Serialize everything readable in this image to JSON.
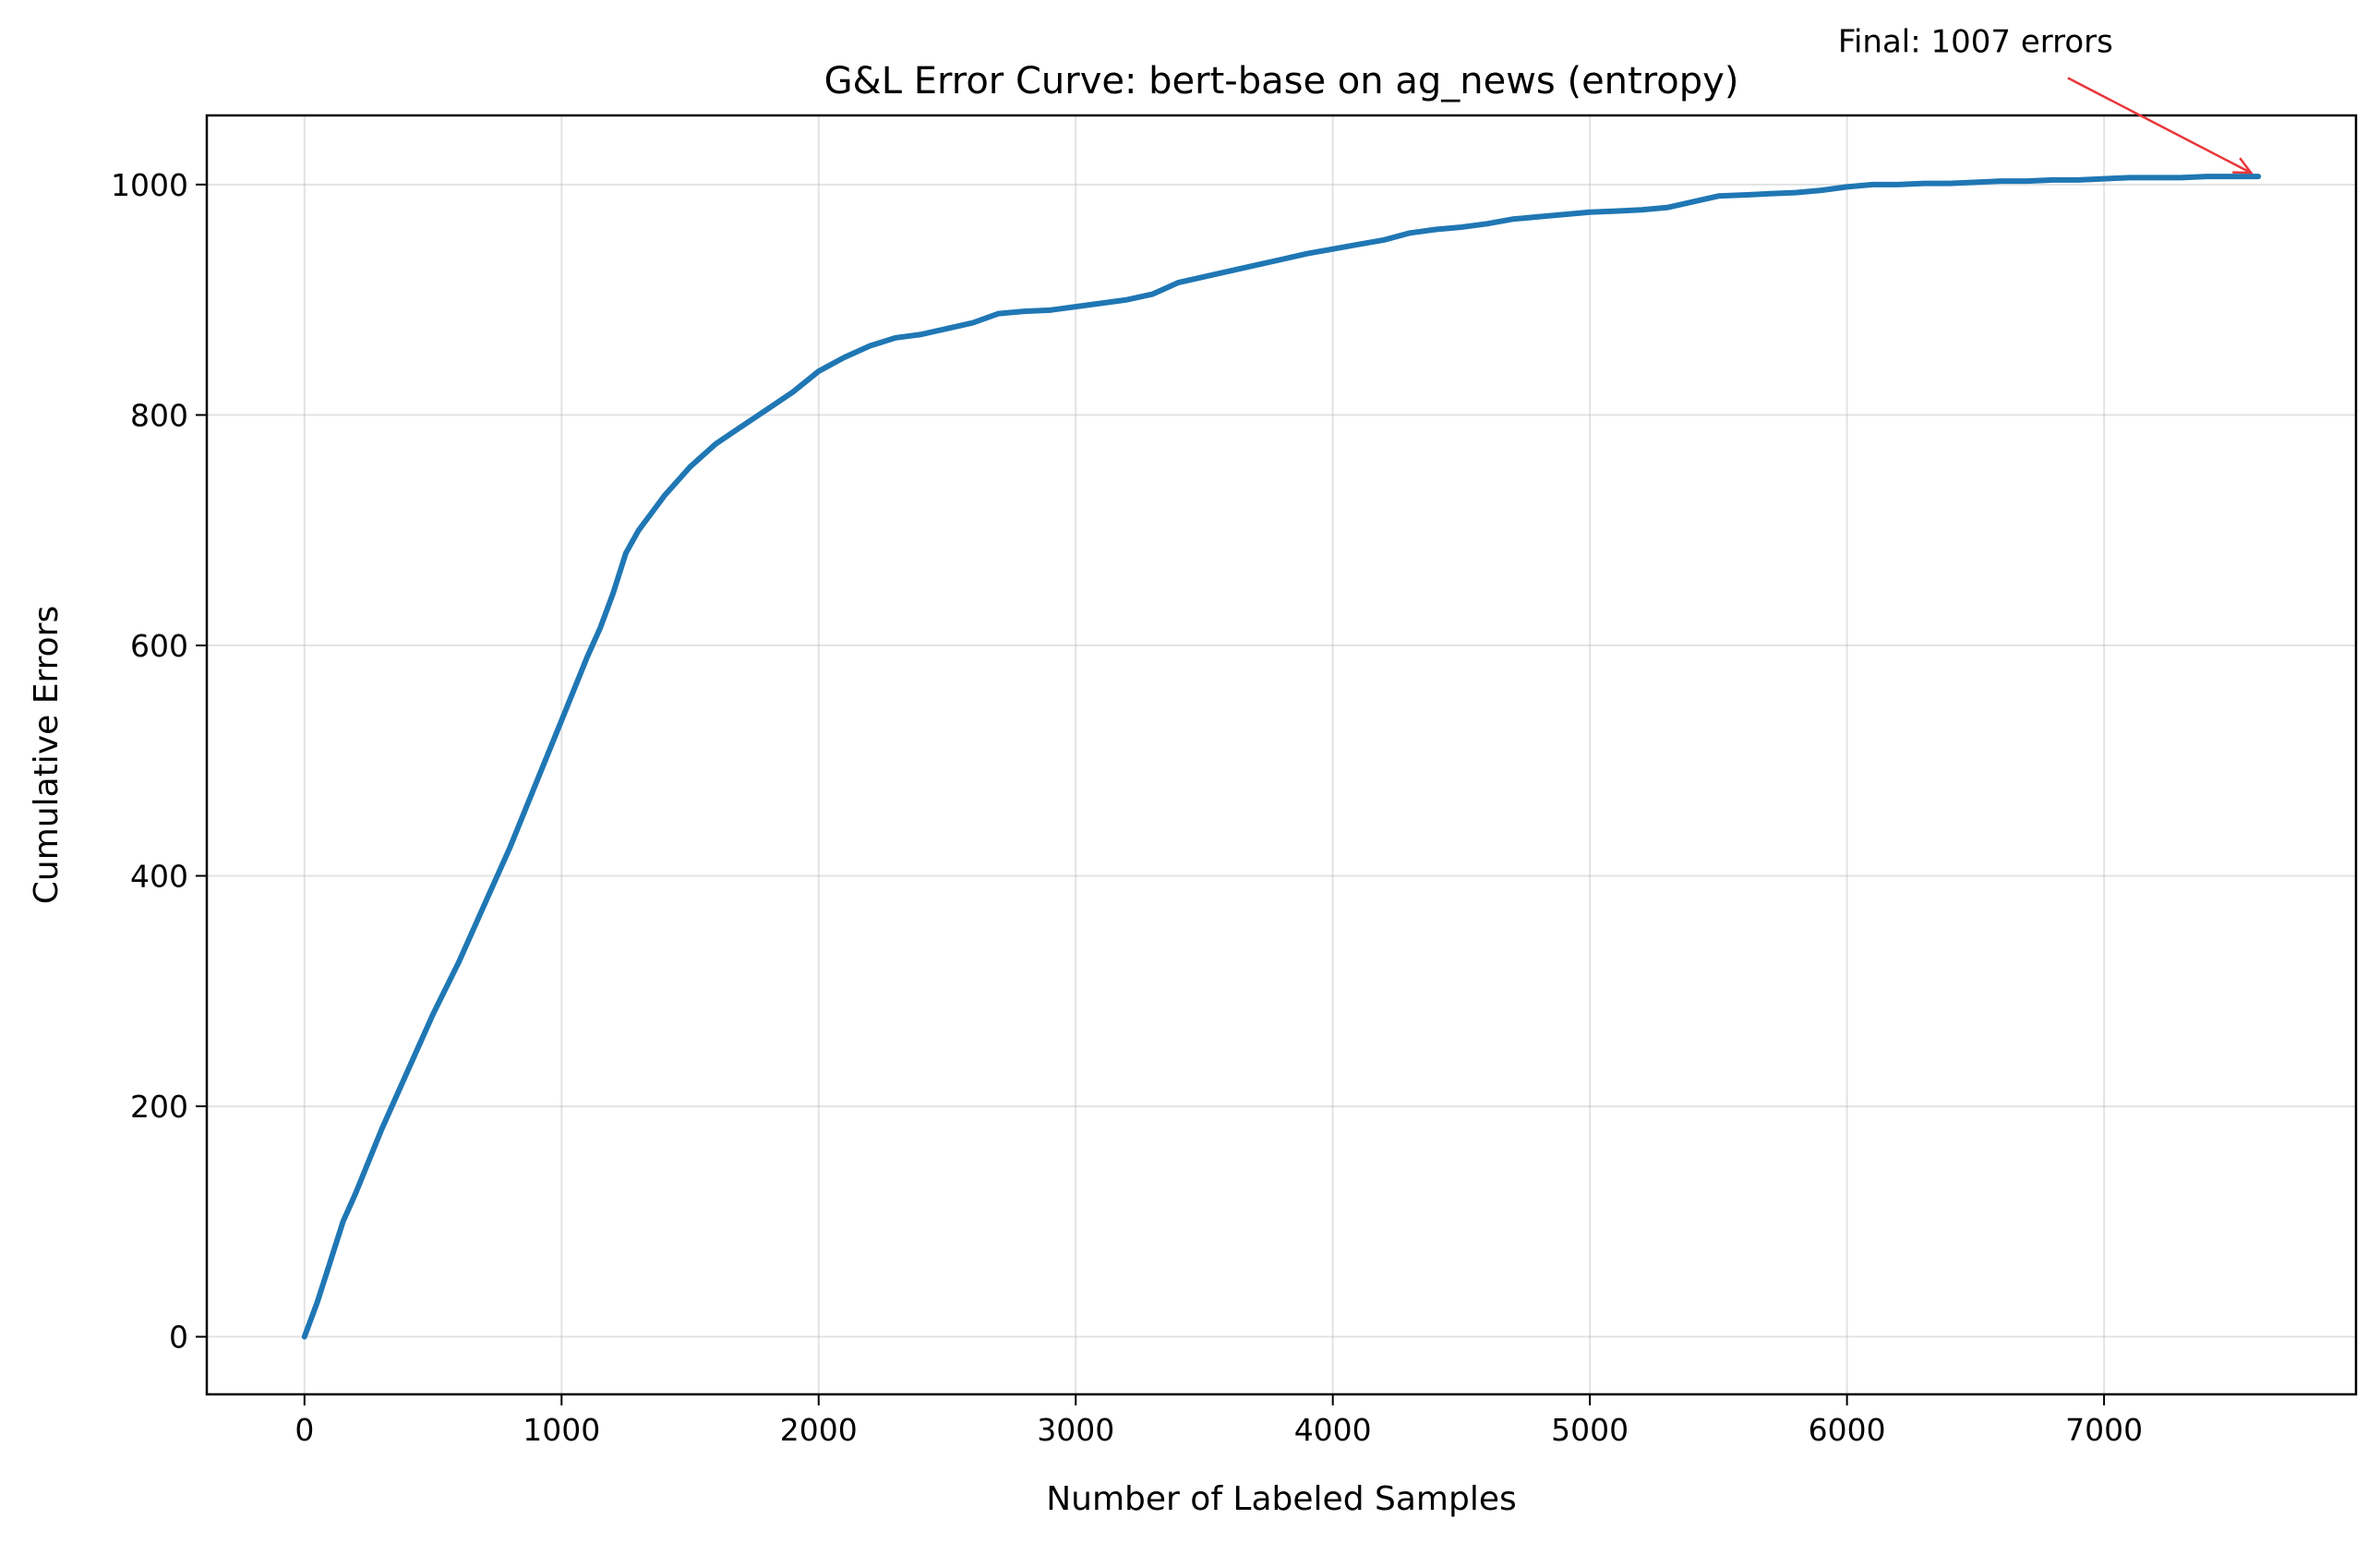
{
  "chart_data": {
    "type": "line",
    "title": "G&L Error Curve: bert-base on ag_news (entropy)",
    "xlabel": "Number of Labeled Samples",
    "ylabel": "Cumulative Errors",
    "xlim": [
      -380,
      7980
    ],
    "ylim": [
      -50,
      1060
    ],
    "xticks": [
      0,
      1000,
      2000,
      3000,
      4000,
      5000,
      6000,
      7000
    ],
    "yticks": [
      0,
      200,
      400,
      600,
      800,
      1000
    ],
    "grid": true,
    "series": [
      {
        "color": "#1f77b4",
        "x": [
          0,
          50,
          100,
          150,
          200,
          300,
          400,
          500,
          600,
          700,
          800,
          900,
          1000,
          1100,
          1150,
          1200,
          1250,
          1300,
          1350,
          1400,
          1500,
          1600,
          1700,
          1800,
          1900,
          2000,
          2100,
          2200,
          2300,
          2400,
          2500,
          2600,
          2700,
          2800,
          2900,
          3000,
          3100,
          3200,
          3300,
          3400,
          3500,
          3600,
          3700,
          3800,
          3900,
          4000,
          4100,
          4200,
          4300,
          4400,
          4500,
          4600,
          4700,
          4800,
          4900,
          5000,
          5100,
          5200,
          5300,
          5400,
          5500,
          5600,
          5700,
          5800,
          5900,
          6000,
          6100,
          6200,
          6300,
          6400,
          6500,
          6600,
          6700,
          6800,
          6900,
          7000,
          7100,
          7200,
          7300,
          7400,
          7500,
          7600
        ],
        "y": [
          0,
          30,
          65,
          100,
          125,
          180,
          230,
          280,
          325,
          375,
          425,
          480,
          535,
          590,
          615,
          645,
          680,
          700,
          715,
          730,
          755,
          775,
          790,
          805,
          820,
          838,
          850,
          860,
          867,
          870,
          875,
          880,
          888,
          890,
          891,
          894,
          897,
          900,
          905,
          915,
          920,
          925,
          930,
          935,
          940,
          944,
          948,
          952,
          958,
          961,
          963,
          966,
          970,
          972,
          974,
          976,
          977,
          978,
          980,
          985,
          990,
          991,
          992,
          993,
          995,
          998,
          1000,
          1000,
          1001,
          1001,
          1002,
          1003,
          1003,
          1004,
          1004,
          1005,
          1006,
          1006,
          1006,
          1007,
          1007,
          1007
        ]
      }
    ],
    "annotation": {
      "text": "Final: 1007 errors",
      "point": [
        7600,
        1007
      ],
      "text_at": [
        6500,
        1115
      ],
      "color": "#e8363a"
    }
  }
}
